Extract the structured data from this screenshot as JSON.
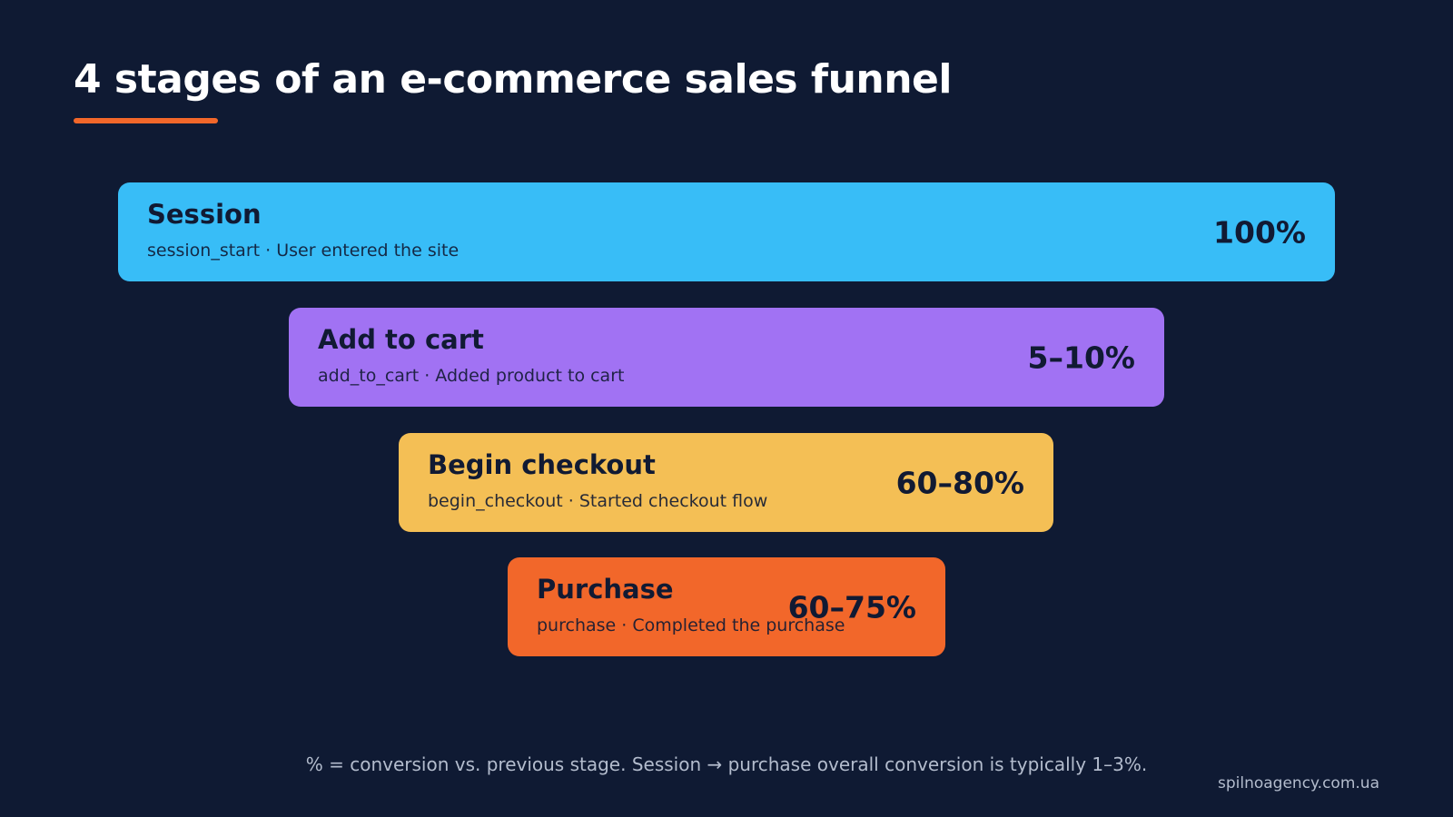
{
  "title": "4 stages of an e-commerce sales funnel",
  "stages": [
    {
      "name": "Session",
      "detail": "session_start · User entered the site",
      "rate": "100%"
    },
    {
      "name": "Add to cart",
      "detail": "add_to_cart · Added product to cart",
      "rate": "5–10%"
    },
    {
      "name": "Begin checkout",
      "detail": "begin_checkout · Started checkout flow",
      "rate": "60–80%"
    },
    {
      "name": "Purchase",
      "detail": "purchase · Completed the purchase",
      "rate": "60–75%"
    }
  ],
  "footnote": "% = conversion vs. previous stage. Session → purchase overall conversion is typically 1–3%.",
  "brand": "spilnoagency.com.ua"
}
